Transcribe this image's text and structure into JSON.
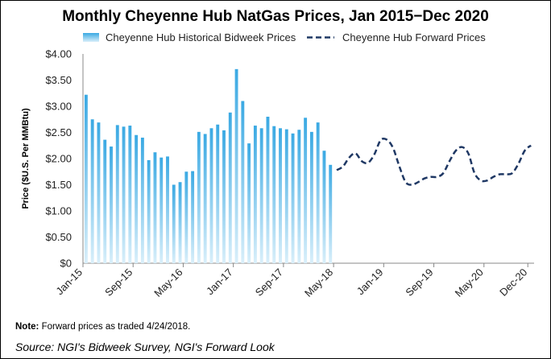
{
  "chart_data": {
    "type": "bar",
    "title": "Monthly Cheyenne Hub NatGas Prices, Jan 2015−Dec 2020",
    "ylabel": "Price ($U.S. Per MMBtu)",
    "ylim": [
      0,
      4.0
    ],
    "y_ticks": [
      "$0",
      "$0.50",
      "$1.00",
      "$1.50",
      "$2.00",
      "$2.50",
      "$3.00",
      "$3.50",
      "$4.00"
    ],
    "y_tick_values": [
      0,
      0.5,
      1.0,
      1.5,
      2.0,
      2.5,
      3.0,
      3.5,
      4.0
    ],
    "x_ticks": [
      "Jan-15",
      "Sep-15",
      "May-16",
      "Jan-17",
      "Sep-17",
      "May-18",
      "Jan-19",
      "Sep-19",
      "May-20",
      "Dec-20"
    ],
    "series": [
      {
        "name": "Cheyenne Hub Historical Bidweek Prices",
        "type": "bar",
        "color": "#4fb3e6",
        "x": [
          "Jan-15",
          "Feb-15",
          "Mar-15",
          "Apr-15",
          "May-15",
          "Jun-15",
          "Jul-15",
          "Aug-15",
          "Sep-15",
          "Oct-15",
          "Nov-15",
          "Dec-15",
          "Jan-16",
          "Feb-16",
          "Mar-16",
          "Apr-16",
          "May-16",
          "Jun-16",
          "Jul-16",
          "Aug-16",
          "Sep-16",
          "Oct-16",
          "Nov-16",
          "Dec-16",
          "Jan-17",
          "Feb-17",
          "Mar-17",
          "Apr-17",
          "May-17",
          "Jun-17",
          "Jul-17",
          "Aug-17",
          "Sep-17",
          "Oct-17",
          "Nov-17",
          "Dec-17",
          "Jan-18",
          "Feb-18",
          "Mar-18",
          "Apr-18",
          "May-18"
        ],
        "values": [
          3.22,
          2.75,
          2.69,
          2.36,
          2.23,
          2.64,
          2.61,
          2.63,
          2.45,
          2.4,
          1.97,
          2.12,
          2.02,
          2.04,
          1.5,
          1.55,
          1.75,
          1.76,
          2.51,
          2.47,
          2.58,
          2.65,
          2.54,
          2.88,
          3.71,
          3.1,
          2.29,
          2.63,
          2.58,
          2.8,
          2.62,
          2.58,
          2.56,
          2.48,
          2.55,
          2.78,
          2.51,
          2.69,
          2.15,
          1.88,
          0
        ]
      },
      {
        "name": "Cheyenne Hub Forward Prices",
        "type": "line",
        "style": "dashed",
        "color": "#1f3864",
        "x": [
          "May-18",
          "Jun-18",
          "Jul-18",
          "Aug-18",
          "Sep-18",
          "Oct-18",
          "Nov-18",
          "Dec-18",
          "Jan-19",
          "Feb-19",
          "Mar-19",
          "Apr-19",
          "May-19",
          "Jun-19",
          "Jul-19",
          "Aug-19",
          "Sep-19",
          "Oct-19",
          "Nov-19",
          "Dec-19",
          "Jan-20",
          "Feb-20",
          "Mar-20",
          "Apr-20",
          "May-20",
          "Jun-20",
          "Jul-20",
          "Aug-20",
          "Sep-20",
          "Oct-20",
          "Nov-20",
          "Dec-20"
        ],
        "values": [
          1.78,
          1.85,
          2.02,
          2.1,
          1.95,
          1.92,
          2.08,
          2.35,
          2.36,
          2.2,
          1.85,
          1.55,
          1.5,
          1.55,
          1.62,
          1.65,
          1.65,
          1.72,
          1.95,
          2.15,
          2.22,
          2.1,
          1.72,
          1.58,
          1.58,
          1.65,
          1.7,
          1.7,
          1.72,
          1.9,
          2.15,
          2.25
        ]
      }
    ],
    "note_label": "Note:",
    "note_text": " Forward prices as traded 4/24/2018.",
    "source": "Source: NGI's Bidweek Survey, NGI's Forward Look"
  }
}
